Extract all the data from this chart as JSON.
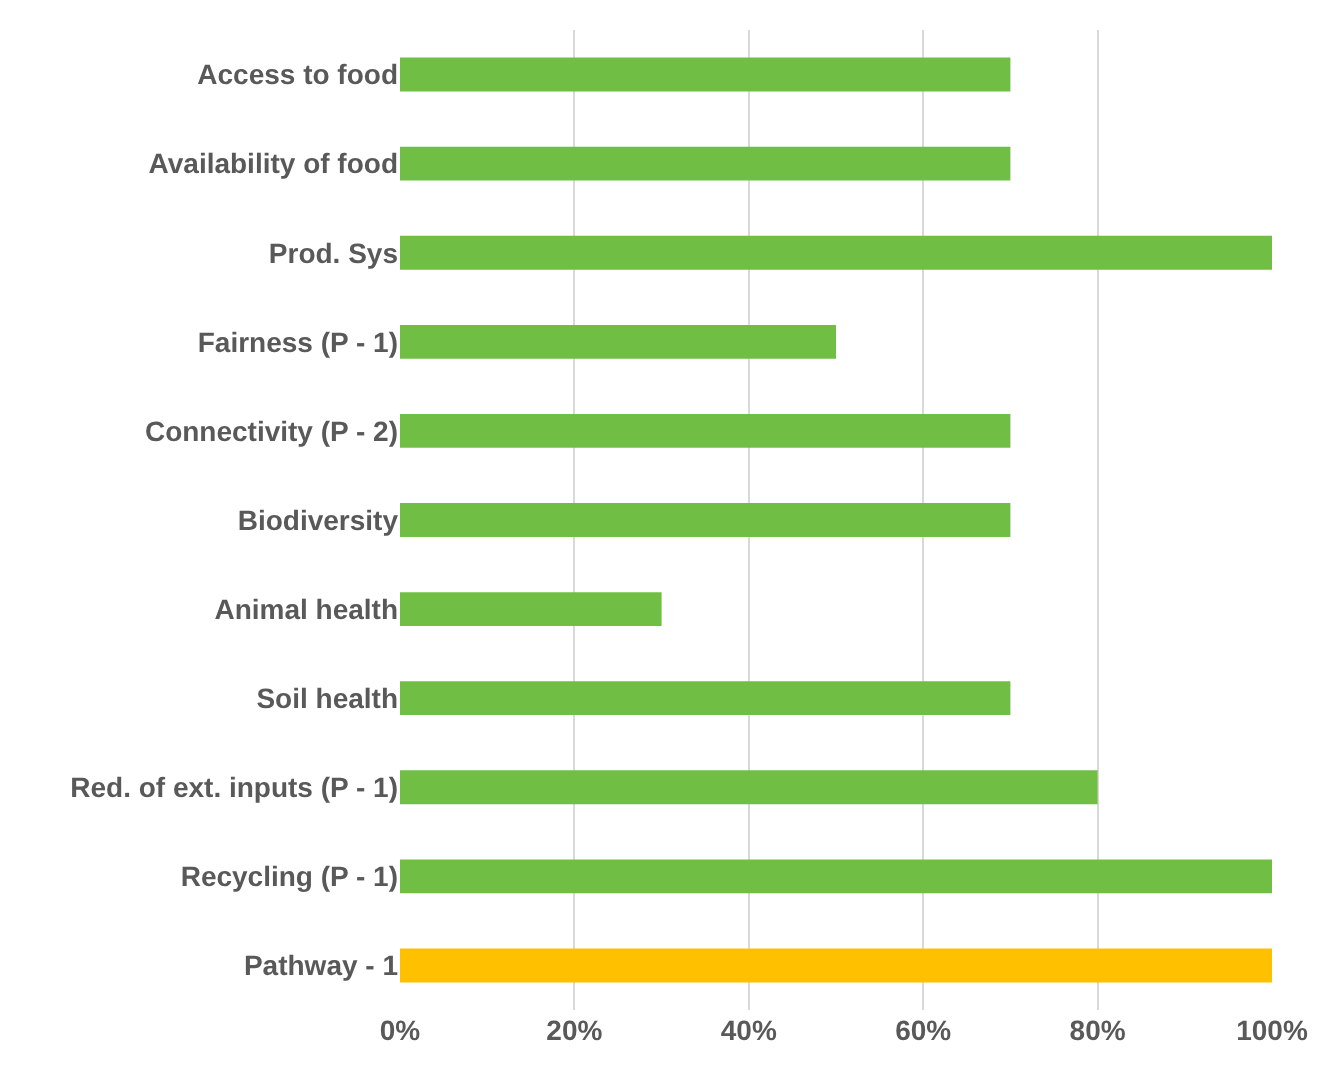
{
  "chart_data": {
    "type": "bar",
    "orientation": "horizontal",
    "categories": [
      "Access to food",
      "Availability of food",
      "Prod. Sys",
      "Fairness (P - 1)",
      "Connectivity (P - 2)",
      "Biodiversity",
      "Animal health",
      "Soil health",
      "Red. of ext. inputs (P - 1)",
      "Recycling (P - 1)",
      "Pathway - 1"
    ],
    "values": [
      70,
      70,
      100,
      50,
      70,
      70,
      30,
      70,
      80,
      100,
      100
    ],
    "colors": [
      "#70bf44",
      "#70bf44",
      "#70bf44",
      "#70bf44",
      "#70bf44",
      "#70bf44",
      "#70bf44",
      "#70bf44",
      "#70bf44",
      "#70bf44",
      "#ffc000"
    ],
    "xlim": [
      0,
      100
    ],
    "xticks": [
      {
        "value": 0,
        "label": "0%"
      },
      {
        "value": 20,
        "label": "20%"
      },
      {
        "value": 40,
        "label": "40%"
      },
      {
        "value": 60,
        "label": "60%"
      },
      {
        "value": 80,
        "label": "80%"
      },
      {
        "value": 100,
        "label": "100%"
      }
    ],
    "grid": "x"
  }
}
